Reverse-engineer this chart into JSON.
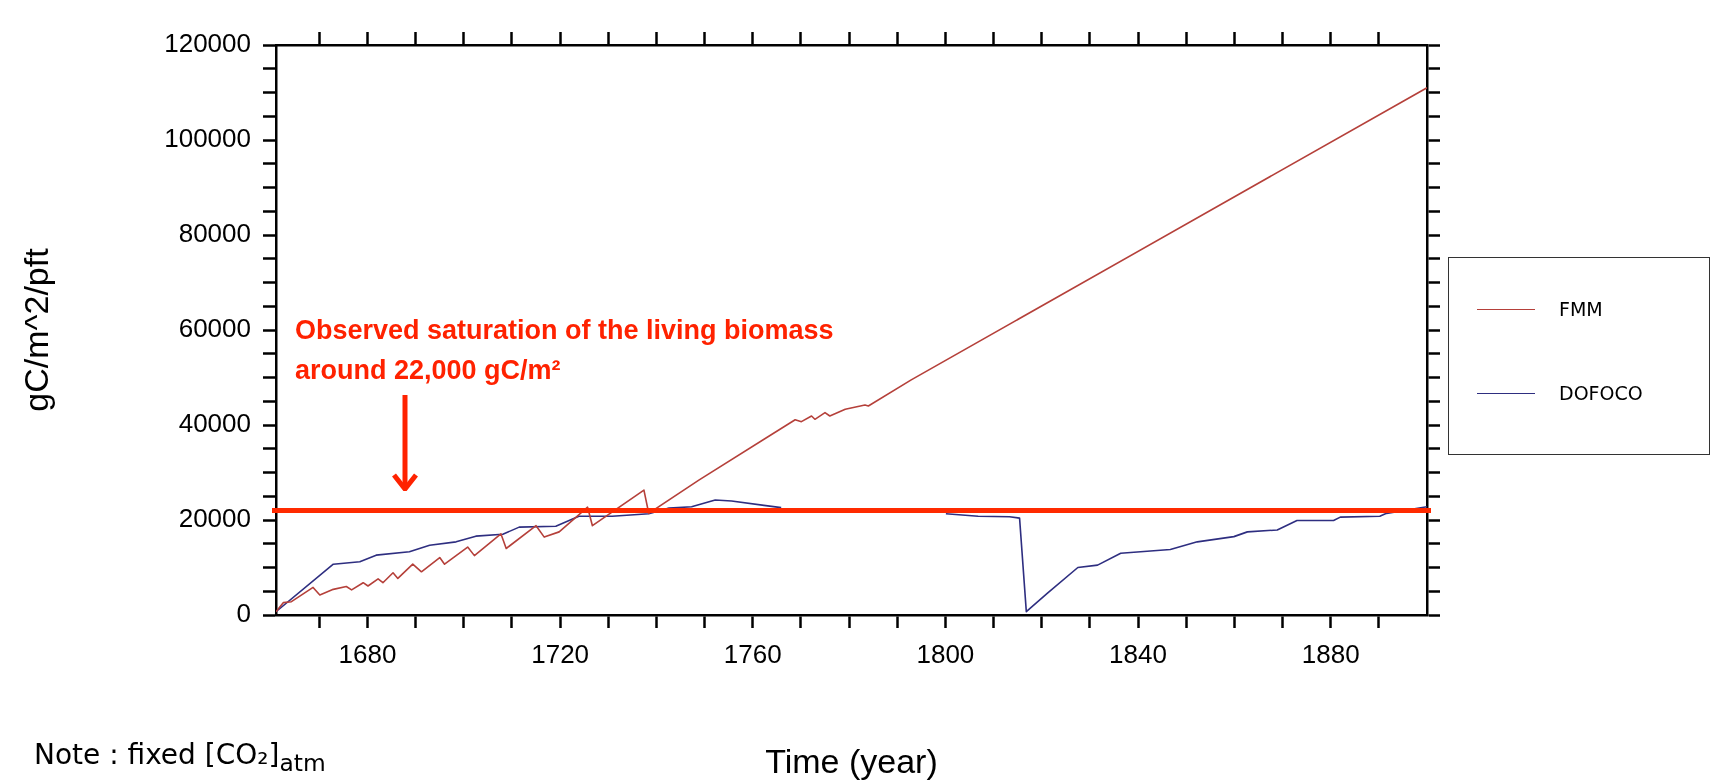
{
  "chart_data": {
    "type": "line",
    "xlabel": "Time (year)",
    "ylabel": "gC/m^2/pft",
    "xlim": [
      1661,
      1900
    ],
    "ylim": [
      0,
      120000
    ],
    "xticks": [
      {
        "value": 1670,
        "label": null
      },
      1680,
      {
        "value": 1690,
        "label": null
      },
      {
        "value": 1700,
        "label": null
      },
      {
        "value": 1710,
        "label": null
      },
      1720,
      {
        "value": 1730,
        "label": null
      },
      {
        "value": 1740,
        "label": null
      },
      {
        "value": 1750,
        "label": null
      },
      1760,
      {
        "value": 1770,
        "label": null
      },
      {
        "value": 1780,
        "label": null
      },
      {
        "value": 1790,
        "label": null
      },
      1800,
      {
        "value": 1810,
        "label": null
      },
      {
        "value": 1820,
        "label": null
      },
      {
        "value": 1830,
        "label": null
      },
      1840,
      {
        "value": 1850,
        "label": null
      },
      {
        "value": 1860,
        "label": null
      },
      {
        "value": 1870,
        "label": null
      },
      1880,
      {
        "value": 1890,
        "label": null
      }
    ],
    "yticks": [
      0,
      {
        "value": 5000,
        "label": null
      },
      {
        "value": 10000,
        "label": null
      },
      {
        "value": 15000,
        "label": null
      },
      20000,
      {
        "value": 25000,
        "label": null
      },
      {
        "value": 30000,
        "label": null
      },
      {
        "value": 35000,
        "label": null
      },
      40000,
      {
        "value": 45000,
        "label": null
      },
      {
        "value": 50000,
        "label": null
      },
      {
        "value": 55000,
        "label": null
      },
      60000,
      {
        "value": 65000,
        "label": null
      },
      {
        "value": 70000,
        "label": null
      },
      {
        "value": 75000,
        "label": null
      },
      80000,
      {
        "value": 85000,
        "label": null
      },
      {
        "value": 90000,
        "label": null
      },
      {
        "value": 95000,
        "label": null
      },
      100000,
      {
        "value": 105000,
        "label": null
      },
      {
        "value": 110000,
        "label": null
      },
      {
        "value": 115000,
        "label": null
      },
      120000
    ],
    "grid": false,
    "legend": "right",
    "marker": "none",
    "line_style": "solid",
    "series": [
      {
        "name": "FMM",
        "color": "#b5403a",
        "x": [
          1661,
          1662.5,
          1664.2,
          1668.7,
          1670.1,
          1672.9,
          1675.6,
          1676.7,
          1679.1,
          1680.1,
          1682.2,
          1683.2,
          1685.3,
          1686.3,
          1689.4,
          1691.2,
          1695,
          1696,
          1700.8,
          1702.2,
          1707.7,
          1708.8,
          1715,
          1716.7,
          1719.8,
          1725.7,
          1726.7,
          1737.4,
          1738.4,
          1748.8,
          1768.8,
          1770.1,
          1772.2,
          1772.9,
          1775,
          1776,
          1779.2,
          1783.3,
          1784,
          1792.9,
          1900
        ],
        "values": [
          700,
          2600,
          2800,
          5800,
          4200,
          5400,
          6000,
          5300,
          6800,
          6100,
          7600,
          6800,
          8900,
          7700,
          10700,
          9100,
          12100,
          10700,
          14300,
          12500,
          17100,
          14000,
          18800,
          16400,
          17500,
          22700,
          18800,
          26300,
          21400,
          28400,
          41100,
          40700,
          41900,
          41200,
          42600,
          41900,
          43300,
          44200,
          44000,
          49500,
          111000
        ]
      },
      {
        "name": "DOFOCO",
        "color": "#2e2e80",
        "x": [
          1661,
          1672.9,
          1678.4,
          1681.8,
          1688.7,
          1692.9,
          1698.4,
          1702.5,
          1708.1,
          1711.5,
          1719.1,
          1723.9,
          1730.8,
          1738.4,
          1742.6,
          1747.3,
          1752.2,
          1755.6,
          1765.9,
          1769.5,
          1800.1,
          1806.8,
          1813.3,
          1815.4,
          1816.8,
          1821.2,
          1827.5,
          1831.6,
          1836.4,
          1846.7,
          1852.3,
          1859.9,
          1862.7,
          1868.9,
          1873,
          1880.6,
          1882,
          1890.2,
          1891.6,
          1900
        ],
        "values": [
          700,
          10700,
          11200,
          12600,
          13300,
          14700,
          15400,
          16600,
          17000,
          18500,
          18700,
          20800,
          20800,
          21300,
          22500,
          22800,
          24200,
          24000,
          22600,
          null,
          21300,
          20800,
          20700,
          20400,
          700,
          4600,
          10000,
          10500,
          13000,
          13800,
          15400,
          16500,
          17500,
          17900,
          19900,
          19900,
          20600,
          20800,
          21400,
          22800
        ]
      }
    ],
    "ref_lines": [
      {
        "axis": "y",
        "value": 22000,
        "color": "#ff2a00"
      }
    ],
    "annotations": [
      "Observed saturation of the living biomass\naround 22,000 gC/m²",
      "Note : fixed [CO₂]$_{atm}$"
    ]
  }
}
